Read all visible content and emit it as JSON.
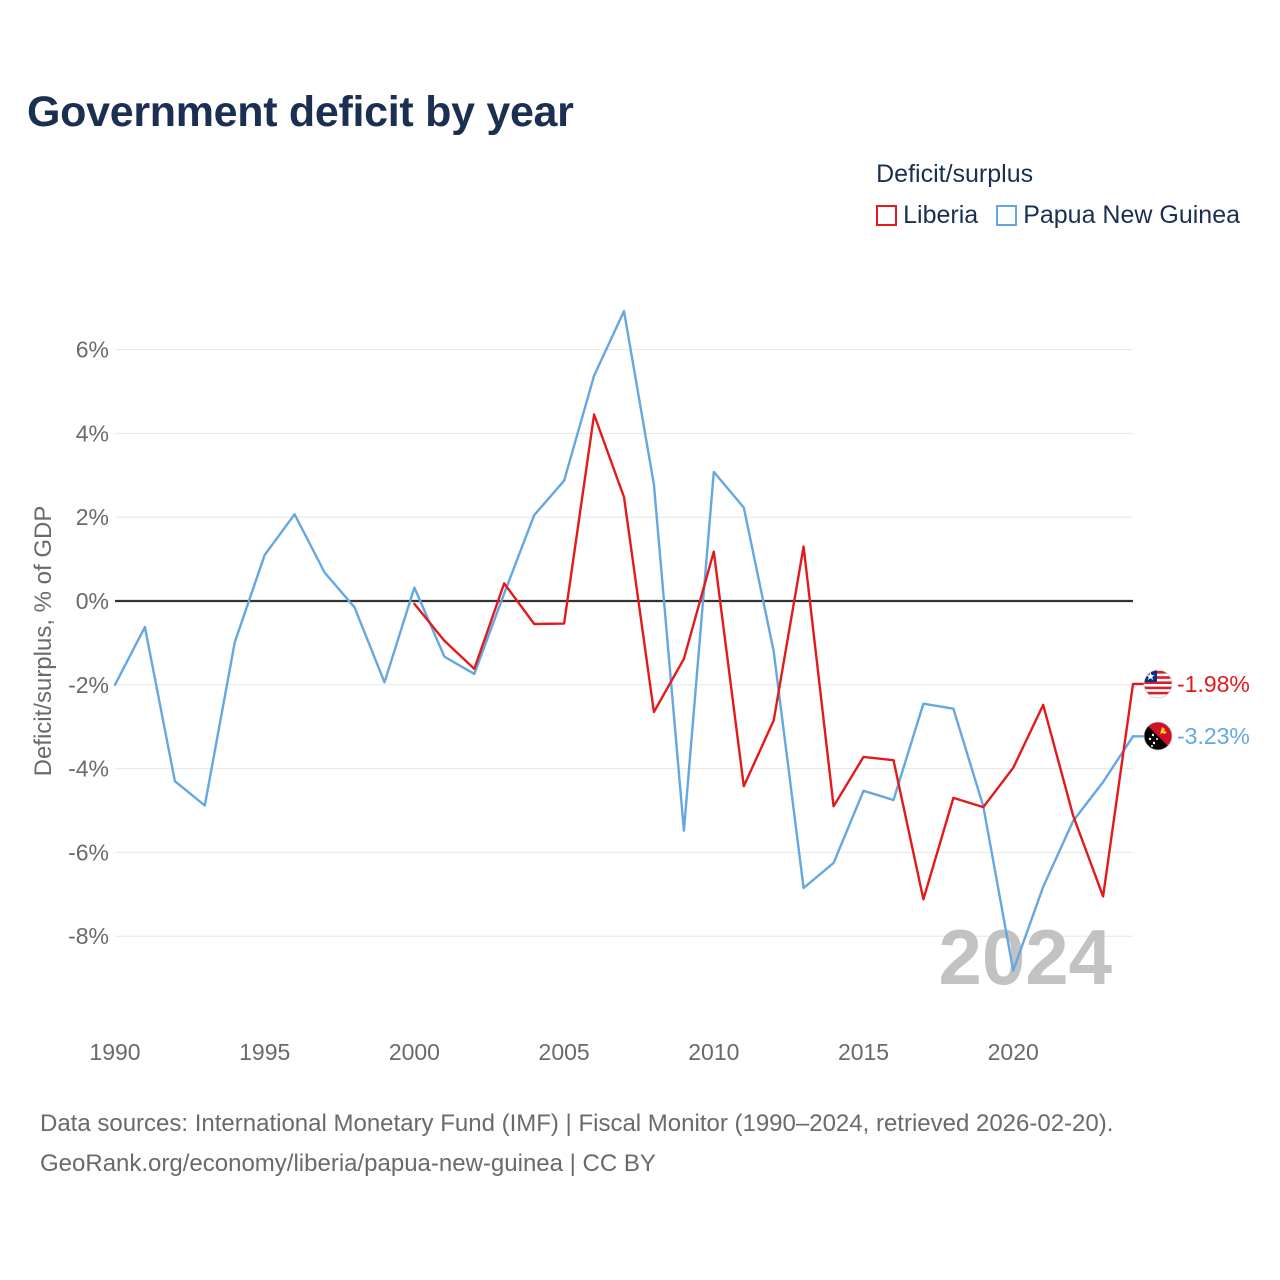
{
  "title": "Government deficit by year",
  "legend": {
    "title": "Deficit/surplus",
    "items": [
      {
        "label": "Liberia",
        "color": "#e31a1c"
      },
      {
        "label": "Papua New Guinea",
        "color": "#64a7e3"
      }
    ]
  },
  "year_watermark": "2024",
  "end_labels": {
    "liberia": "-1.98%",
    "png": "-3.23%"
  },
  "footer": {
    "line1": "Data sources: International Monetary Fund (IMF) | Fiscal Monitor (1990–2024, retrieved 2026-02-20).",
    "line2": "GeoRank.org/economy/liberia/papua-new-guinea | CC BY"
  },
  "chart_data": {
    "type": "line",
    "title": "Government deficit by year",
    "xlabel": "",
    "ylabel": "Deficit/surplus, % of GDP",
    "xlim": [
      1990,
      2024
    ],
    "ylim": [
      -10,
      7
    ],
    "x_ticks": [
      1990,
      1995,
      2000,
      2005,
      2010,
      2015,
      2020
    ],
    "y_ticks": [
      6,
      4,
      2,
      0,
      -2,
      -4,
      -6,
      -8
    ],
    "y_tick_labels": [
      "6%",
      "4%",
      "2%",
      "0%",
      "-2%",
      "-4%",
      "-6%",
      "-8%"
    ],
    "x_tick_labels": [
      "1990",
      "1995",
      "2000",
      "2005",
      "2010",
      "2015",
      "2020"
    ],
    "series": [
      {
        "name": "Liberia",
        "color": "#e31a1c",
        "x": [
          2000,
          2001,
          2002,
          2003,
          2004,
          2005,
          2006,
          2007,
          2008,
          2009,
          2010,
          2011,
          2012,
          2013,
          2014,
          2015,
          2016,
          2017,
          2018,
          2019,
          2020,
          2021,
          2022,
          2023,
          2024
        ],
        "values": [
          -0.07,
          -0.95,
          -1.62,
          0.42,
          -0.55,
          -0.54,
          4.45,
          2.48,
          -2.65,
          -1.38,
          1.18,
          -4.42,
          -2.85,
          1.3,
          -4.9,
          -3.72,
          -3.8,
          -7.12,
          -4.7,
          -4.92,
          -3.98,
          -2.48,
          -5.12,
          -7.05,
          -1.98
        ]
      },
      {
        "name": "Papua New Guinea",
        "color": "#64a7e3",
        "x": [
          1990,
          1991,
          1992,
          1993,
          1994,
          1995,
          1996,
          1997,
          1998,
          1999,
          2000,
          2001,
          2002,
          2003,
          2004,
          2005,
          2006,
          2007,
          2008,
          2009,
          2010,
          2011,
          2012,
          2013,
          2014,
          2015,
          2016,
          2017,
          2018,
          2019,
          2020,
          2021,
          2022,
          2023,
          2024
        ],
        "values": [
          -2.0,
          -0.62,
          -4.3,
          -4.88,
          -0.98,
          1.1,
          2.07,
          0.68,
          -0.15,
          -1.94,
          0.32,
          -1.33,
          -1.74,
          0.18,
          2.05,
          2.87,
          5.38,
          6.92,
          2.78,
          -5.48,
          3.08,
          2.23,
          -1.2,
          -6.85,
          -6.25,
          -4.53,
          -4.75,
          -2.45,
          -2.57,
          -4.9,
          -8.82,
          -6.82,
          -5.25,
          -4.32,
          -3.23
        ]
      }
    ]
  }
}
